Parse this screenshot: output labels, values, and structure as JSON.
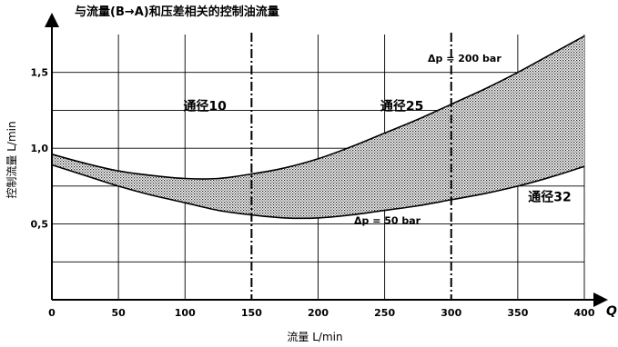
{
  "chart_data": {
    "type": "area",
    "title": "与流量(B→A)和压差相关的控制油流量",
    "xlabel": "流量 L/min",
    "ylabel": "控制流量 L/min",
    "x_axis_symbol": "Q",
    "xlim": [
      0,
      400
    ],
    "ylim": [
      0,
      1.75
    ],
    "x_ticks": [
      0,
      50,
      100,
      150,
      200,
      250,
      300,
      350,
      400
    ],
    "x_tick_labels": [
      "0",
      "50",
      "100",
      "150",
      "200",
      "250",
      "300",
      "350",
      "400"
    ],
    "y_ticks": [
      0.5,
      1.0,
      1.5
    ],
    "y_tick_labels": [
      "0,5",
      "1,0",
      "1,5"
    ],
    "grid": true,
    "series": [
      {
        "name": "Δp = 200 bar",
        "x": [
          0,
          25,
          50,
          75,
          100,
          125,
          150,
          175,
          200,
          225,
          250,
          275,
          300,
          325,
          350,
          375,
          400
        ],
        "y": [
          0.96,
          0.9,
          0.85,
          0.82,
          0.8,
          0.8,
          0.83,
          0.87,
          0.93,
          1.01,
          1.1,
          1.19,
          1.29,
          1.39,
          1.5,
          1.62,
          1.74
        ]
      },
      {
        "name": "Δp = 50 bar",
        "x": [
          0,
          25,
          50,
          75,
          100,
          125,
          150,
          175,
          200,
          225,
          250,
          275,
          300,
          325,
          350,
          375,
          400
        ],
        "y": [
          0.89,
          0.82,
          0.75,
          0.69,
          0.64,
          0.59,
          0.56,
          0.54,
          0.54,
          0.56,
          0.59,
          0.62,
          0.66,
          0.7,
          0.75,
          0.81,
          0.88
        ]
      }
    ],
    "dividers": [
      150,
      300
    ],
    "zones": [
      {
        "label": "通径10",
        "x": 115,
        "y": 1.25
      },
      {
        "label": "通径25",
        "x": 263,
        "y": 1.25
      },
      {
        "label": "通径32",
        "x": 374,
        "y": 0.65
      }
    ],
    "annotations": [
      {
        "label": "Δp = 200 bar",
        "x": 310,
        "y": 1.57
      },
      {
        "label": "Δp = 50 bar",
        "x": 252,
        "y": 0.5
      }
    ]
  }
}
